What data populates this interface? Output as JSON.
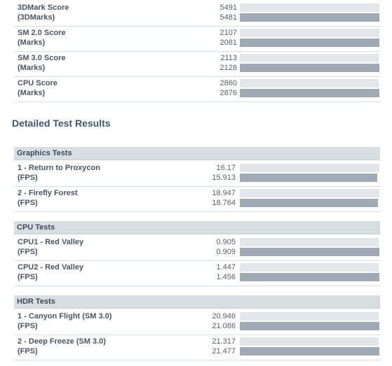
{
  "scores": [
    {
      "label": "3DMark Score",
      "unit": "(3DMarks)",
      "value1": "5491",
      "value2": "5481",
      "bar1": 1.0,
      "bar2": 1.0
    },
    {
      "label": "SM 2.0 Score",
      "unit": "(Marks)",
      "value1": "2107",
      "value2": "2081",
      "bar1": 1.0,
      "bar2": 1.0
    },
    {
      "label": "SM 3.0 Score",
      "unit": "(Marks)",
      "value1": "2113",
      "value2": "2128",
      "bar1": 0.993,
      "bar2": 1.0
    },
    {
      "label": "CPU Score",
      "unit": "(Marks)",
      "value1": "2860",
      "value2": "2876",
      "bar1": 0.994,
      "bar2": 1.0
    }
  ],
  "section_title": "Detailed Test Results",
  "categories": [
    {
      "title": "Graphics Tests",
      "rows": [
        {
          "label": "1 - Return to Proxycon",
          "unit": "(FPS)",
          "value1": "16.17",
          "value2": "15.913",
          "bar1": 1.0,
          "bar2": 0.984
        },
        {
          "label": "2 - Firefly Forest",
          "unit": "(FPS)",
          "value1": "18.947",
          "value2": "18.764",
          "bar1": 1.0,
          "bar2": 0.99
        }
      ]
    },
    {
      "title": "CPU Tests",
      "rows": [
        {
          "label": "CPU1 - Red Valley",
          "unit": "(FPS)",
          "value1": "0.905",
          "value2": "0.909",
          "bar1": 0.996,
          "bar2": 1.0
        },
        {
          "label": "CPU2 - Red Valley",
          "unit": "(FPS)",
          "value1": "1.447",
          "value2": "1.456",
          "bar1": 0.994,
          "bar2": 1.0
        }
      ]
    },
    {
      "title": "HDR Tests",
      "rows": [
        {
          "label": "1 - Canyon Flight (SM 3.0)",
          "unit": "(FPS)",
          "value1": "20.946",
          "value2": "21.086",
          "bar1": 0.993,
          "bar2": 1.0
        },
        {
          "label": "2 - Deep Freeze (SM 3.0)",
          "unit": "(FPS)",
          "value1": "21.317",
          "value2": "21.477",
          "bar1": 0.993,
          "bar2": 1.0
        }
      ]
    }
  ],
  "colors": {
    "bar_primary": "#e2e6ea",
    "bar_secondary": "#a0aab6",
    "header_bg": "#d9dee3",
    "title": "#3e5770"
  }
}
